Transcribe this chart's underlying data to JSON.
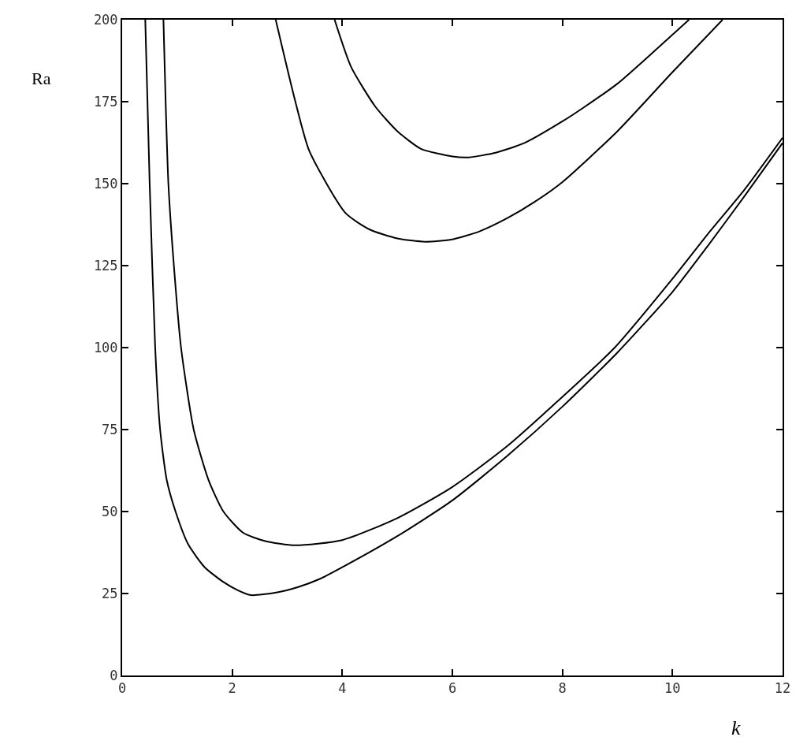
{
  "chart_data": {
    "type": "line",
    "xlabel": "k",
    "ylabel": "Ra",
    "xlim": [
      0,
      12
    ],
    "ylim": [
      0,
      200
    ],
    "xticks": [
      0,
      2,
      4,
      6,
      8,
      10,
      12
    ],
    "yticks": [
      0,
      25,
      50,
      75,
      100,
      125,
      150,
      175,
      200
    ],
    "grid": false,
    "marker": "none",
    "line_style": "solid",
    "series": [
      {
        "color": "#000000",
        "x": [
          0.42,
          0.5,
          0.6,
          0.69,
          0.81,
          0.97,
          1.2,
          1.5,
          1.84,
          2.1,
          2.34,
          2.8,
          3.2,
          3.6,
          4,
          5,
          6,
          7,
          8,
          9,
          10,
          10.64,
          11.3,
          12
        ],
        "values": [
          200,
          150,
          100,
          75,
          59.6,
          50,
          40,
          33,
          28.5,
          26,
          24.5,
          25.3,
          27,
          29.5,
          33,
          42.5,
          53.4,
          67,
          82,
          98.5,
          117,
          131,
          146,
          162.4
        ]
      },
      {
        "color": "#000000",
        "x": [
          0.75,
          0.79,
          0.84,
          0.94,
          1.07,
          1.3,
          1.57,
          1.84,
          2.2,
          2.6,
          3.14,
          4,
          5,
          6,
          7,
          8,
          8.95,
          10,
          10.64,
          11.3,
          12
        ],
        "values": [
          200,
          175,
          150,
          125,
          100,
          75,
          59.6,
          50,
          43.5,
          41,
          39.7,
          41.3,
          48,
          57.5,
          70,
          85,
          100,
          121,
          134.6,
          148,
          164
        ]
      },
      {
        "color": "#000000",
        "x": [
          2.79,
          3.14,
          3.4,
          4.06,
          4.5,
          5,
          5.5,
          6,
          6.5,
          7,
          7.5,
          8,
          9,
          10,
          10.91
        ],
        "values": [
          200,
          175.5,
          160,
          141,
          136,
          133.3,
          132.3,
          133,
          135.5,
          139.5,
          144.5,
          150.5,
          166,
          184,
          200
        ]
      },
      {
        "color": "#000000",
        "x": [
          3.86,
          4.16,
          4.6,
          5,
          5.43,
          6,
          6.3,
          6.8,
          7.31,
          8,
          8.41,
          9,
          9.51,
          10.3
        ],
        "values": [
          200,
          185.6,
          173.5,
          166,
          160.6,
          158.3,
          158,
          159.5,
          162.4,
          169,
          173.5,
          180.5,
          188,
          200
        ]
      }
    ]
  }
}
